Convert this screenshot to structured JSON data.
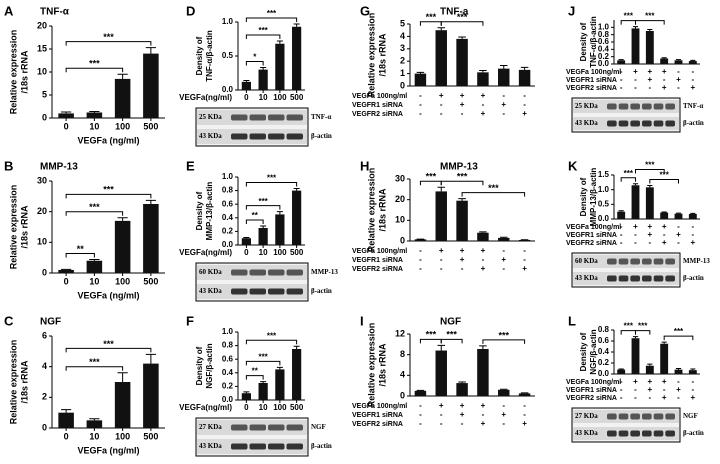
{
  "chart_data": [
    {
      "type": "bar",
      "panel": "A",
      "title": "TNF-α",
      "ylabel": [
        "Relative expression",
        "/18s rRNA"
      ],
      "xlabel": "VEGFa (ng/ml)",
      "categories": [
        "0",
        "10",
        "100",
        "500"
      ],
      "values": [
        1,
        1.2,
        8.5,
        14
      ],
      "errors": [
        0.3,
        0.2,
        1,
        1.3
      ],
      "color": "#111111",
      "ylim": [
        0,
        20
      ],
      "yticks": [
        0,
        5,
        10,
        15,
        20
      ],
      "annotations": [
        {
          "text": "***",
          "from": 0,
          "to": 2
        },
        {
          "text": "***",
          "from": 0,
          "to": 3
        }
      ]
    },
    {
      "type": "bar",
      "panel": "B",
      "title": "MMP-13",
      "ylabel": [
        "Relative expression",
        "/18s rRNA"
      ],
      "xlabel": "VEGFa (ng/ml)",
      "categories": [
        "0",
        "10",
        "100",
        "500"
      ],
      "values": [
        1,
        4,
        17,
        22.5
      ],
      "errors": [
        0.2,
        0.4,
        1,
        1.2
      ],
      "color": "#111111",
      "ylim": [
        0,
        30
      ],
      "yticks": [
        0,
        10,
        20,
        30
      ],
      "annotations": [
        {
          "text": "**",
          "from": 0,
          "to": 1
        },
        {
          "text": "***",
          "from": 0,
          "to": 2
        },
        {
          "text": "***",
          "from": 0,
          "to": 3
        }
      ]
    },
    {
      "type": "bar",
      "panel": "C",
      "title": "NGF",
      "ylabel": [
        "Relative expression",
        "/18s rRNA"
      ],
      "xlabel": "VEGFa (ng/ml)",
      "categories": [
        "0",
        "10",
        "100",
        "500"
      ],
      "values": [
        1,
        0.5,
        3,
        4.2
      ],
      "errors": [
        0.2,
        0.1,
        0.6,
        0.6
      ],
      "color": "#111111",
      "ylim": [
        0,
        6
      ],
      "yticks": [
        0,
        2,
        4,
        6
      ],
      "annotations": [
        {
          "text": "***",
          "from": 0,
          "to": 2
        },
        {
          "text": "***",
          "from": 0,
          "to": 3
        }
      ]
    },
    {
      "type": "bar",
      "panel": "D",
      "ylabel": [
        "Density of",
        "TNF-α/β-actin"
      ],
      "xlabel": "VEGFa(ng/ml)",
      "categories": [
        "0",
        "10",
        "100",
        "500"
      ],
      "values": [
        0.12,
        0.3,
        0.68,
        0.93
      ],
      "errors": [
        0.02,
        0.03,
        0.04,
        0.04
      ],
      "color": "#111111",
      "ylim": [
        0,
        1
      ],
      "yticks": [
        {
          "value": 0,
          "label": "0.0"
        },
        0.5,
        {
          "value": 1,
          "label": "1.0"
        }
      ],
      "annotations": [
        {
          "text": "*",
          "from": 0,
          "to": 1
        },
        {
          "text": "***",
          "from": 0,
          "to": 2
        },
        {
          "text": "***",
          "from": 0,
          "to": 3
        }
      ],
      "blot": {
        "top_kda": "25 KDa",
        "top_name": "TNF-α",
        "bottom_kda": "43 KDa",
        "bottom_name": "β-actin"
      }
    },
    {
      "type": "bar",
      "panel": "E",
      "ylabel": [
        "Density of",
        "MMP-13/β-actin"
      ],
      "xlabel": "VEGFa(ng/ml)",
      "categories": [
        "0",
        "10",
        "100",
        "500"
      ],
      "values": [
        0.1,
        0.25,
        0.45,
        0.8
      ],
      "errors": [
        0.01,
        0.03,
        0.04,
        0.03
      ],
      "color": "#111111",
      "ylim": [
        0,
        1
      ],
      "yticks": [
        {
          "value": 0,
          "label": "0.0"
        },
        0.2,
        0.4,
        0.6,
        0.8,
        {
          "value": 1,
          "label": "1.0"
        }
      ],
      "annotations": [
        {
          "text": "**",
          "from": 0,
          "to": 1
        },
        {
          "text": "***",
          "from": 0,
          "to": 2
        },
        {
          "text": "***",
          "from": 0,
          "to": 3
        }
      ],
      "blot": {
        "top_kda": "60 KDa",
        "top_name": "MMP-13",
        "bottom_kda": "43 KDa",
        "bottom_name": "β-actin"
      }
    },
    {
      "type": "bar",
      "panel": "F",
      "ylabel": [
        "Density of",
        "NGF/β-actin"
      ],
      "xlabel": "VEGFa(ng/ml)",
      "categories": [
        "0",
        "10",
        "100",
        "500"
      ],
      "values": [
        0.1,
        0.25,
        0.45,
        0.75
      ],
      "errors": [
        0.02,
        0.02,
        0.03,
        0.04
      ],
      "color": "#111111",
      "ylim": [
        0,
        1
      ],
      "yticks": [
        {
          "value": 0,
          "label": "0.0"
        },
        0.2,
        0.4,
        0.6,
        0.8,
        {
          "value": 1,
          "label": "1.0"
        }
      ],
      "annotations": [
        {
          "text": "**",
          "from": 0,
          "to": 1
        },
        {
          "text": "***",
          "from": 0,
          "to": 2
        },
        {
          "text": "***",
          "from": 0,
          "to": 3
        }
      ],
      "blot": {
        "top_kda": "27 KDa",
        "top_name": "NGF",
        "bottom_kda": "43 KDa",
        "bottom_name": "β-actin"
      }
    },
    {
      "type": "bar",
      "panel": "G",
      "title": "TNF-a",
      "ylabel": [
        "Relative expression",
        "/18s rRNA"
      ],
      "values": [
        1,
        4.5,
        3.8,
        1.1,
        1.4,
        1.3
      ],
      "errors": [
        0.1,
        0.2,
        0.15,
        0.15,
        0.25,
        0.2
      ],
      "color": "#111111",
      "ylim": [
        0,
        5
      ],
      "yticks": [
        0,
        1,
        2,
        3,
        4,
        5
      ],
      "annotations": [
        {
          "text": "***",
          "from": 0,
          "to": 1
        },
        {
          "text": "***",
          "from": 1,
          "to": 3
        }
      ],
      "conditions": [
        {
          "name": "VEGFa 100ng/ml",
          "signs": [
            "-",
            "+",
            "+",
            "+",
            "-",
            "-"
          ]
        },
        {
          "name": "VEGFR1 siRNA",
          "signs": [
            "-",
            "-",
            "+",
            "-",
            "+",
            "-"
          ]
        },
        {
          "name": "VEGFR2 siRNA",
          "signs": [
            "-",
            "-",
            "-",
            "+",
            "-",
            "+"
          ]
        }
      ]
    },
    {
      "type": "bar",
      "panel": "H",
      "title": "MMP-13",
      "ylabel": [
        "Relative expression",
        "/18s rRNA"
      ],
      "values": [
        0.8,
        24,
        19.5,
        4,
        1.5,
        0.5
      ],
      "errors": [
        0.1,
        2,
        1,
        0.4,
        0.3,
        0.1
      ],
      "color": "#111111",
      "ylim": [
        0,
        30
      ],
      "yticks": [
        0,
        10,
        20,
        30
      ],
      "annotations": [
        {
          "text": "***",
          "from": 2,
          "to": 5
        },
        {
          "text": "***",
          "from": 0,
          "to": 1
        },
        {
          "text": "***",
          "from": 1,
          "to": 3
        }
      ],
      "conditions": [
        {
          "name": "VEGFa 100ng/ml",
          "signs": [
            "-",
            "+",
            "+",
            "+",
            "-",
            "-"
          ]
        },
        {
          "name": "VEGFR1 siRNA",
          "signs": [
            "-",
            "-",
            "+",
            "-",
            "+",
            "-"
          ]
        },
        {
          "name": "VEGFR2 siRNA",
          "signs": [
            "-",
            "-",
            "-",
            "+",
            "-",
            "+"
          ]
        }
      ]
    },
    {
      "type": "bar",
      "panel": "I",
      "title": "NGF",
      "ylabel": [
        "Relative expression",
        "/18s rRNA"
      ],
      "values": [
        1,
        8.8,
        2.5,
        9.1,
        1.2,
        0.5
      ],
      "errors": [
        0.1,
        1,
        0.2,
        0.6,
        0.1,
        0.1
      ],
      "color": "#111111",
      "ylim": [
        0,
        12
      ],
      "yticks": [
        0,
        4,
        8,
        12
      ],
      "annotations": [
        {
          "text": "***",
          "from": 0,
          "to": 1
        },
        {
          "text": "***",
          "from": 1,
          "to": 2
        },
        {
          "text": "***",
          "from": 3,
          "to": 5
        }
      ],
      "conditions": [
        {
          "name": "VEGFa 100ng/ml",
          "signs": [
            "-",
            "+",
            "+",
            "+",
            "-",
            "-"
          ]
        },
        {
          "name": "VEGFR1 siRNA",
          "signs": [
            "-",
            "-",
            "+",
            "-",
            "+",
            "-"
          ]
        },
        {
          "name": "VEGFR2 siRNA",
          "signs": [
            "-",
            "-",
            "-",
            "+",
            "-",
            "+"
          ]
        }
      ]
    },
    {
      "type": "bar",
      "panel": "J",
      "ylabel": [
        "Density of",
        "TNF-α/β-actin"
      ],
      "values": [
        0.1,
        0.97,
        0.9,
        0.15,
        0.1,
        0.08
      ],
      "errors": [
        0.02,
        0.05,
        0.04,
        0.02,
        0.02,
        0.02
      ],
      "color": "#111111",
      "ylim": [
        0,
        1.2
      ],
      "yticks": [
        {
          "value": 0,
          "label": "0.0"
        },
        0.2,
        0.4,
        0.6,
        0.8,
        {
          "value": 1,
          "label": "1.0"
        }
      ],
      "annotations": [
        {
          "text": "***",
          "from": 0,
          "to": 1
        },
        {
          "text": "***",
          "from": 1,
          "to": 3
        }
      ],
      "conditions": [
        {
          "name": "VEGFa 100ng/ml",
          "signs": [
            "-",
            "+",
            "+",
            "+",
            "-",
            "-"
          ]
        },
        {
          "name": "VEGFR1 siRNA",
          "signs": [
            "-",
            "-",
            "+",
            "-",
            "+",
            "-"
          ]
        },
        {
          "name": "VEGFR2 siRNA",
          "signs": [
            "-",
            "-",
            "-",
            "+",
            "-",
            "+"
          ]
        }
      ],
      "blot": {
        "top_kda": "25 KDa",
        "top_name": "TNF-α",
        "bottom_kda": "43 KDa",
        "bottom_name": "β-actin"
      }
    },
    {
      "type": "bar",
      "panel": "K",
      "ylabel": [
        "Density of",
        "MMP-13/β-actin"
      ],
      "values": [
        0.25,
        1.15,
        1.08,
        0.22,
        0.18,
        0.17
      ],
      "errors": [
        0.03,
        0.05,
        0.06,
        0.02,
        0.02,
        0.02
      ],
      "color": "#111111",
      "ylim": [
        0,
        1.5
      ],
      "yticks": [
        {
          "value": 0,
          "label": "0.0"
        },
        0.5,
        {
          "value": 1,
          "label": "1.0"
        },
        1.5
      ],
      "annotations": [
        {
          "text": "***",
          "from": 0,
          "to": 1
        },
        {
          "text": "***",
          "from": 2,
          "to": 4
        },
        {
          "text": "***",
          "from": 1,
          "to": 3
        }
      ],
      "conditions": [
        {
          "name": "VEGFa 100ng/ml",
          "signs": [
            "-",
            "+",
            "+",
            "+",
            "-",
            "-"
          ]
        },
        {
          "name": "VEGFR1 siRNA",
          "signs": [
            "-",
            "-",
            "+",
            "-",
            "+",
            "-"
          ]
        },
        {
          "name": "VEGFR2 siRNA",
          "signs": [
            "-",
            "-",
            "-",
            "+",
            "-",
            "+"
          ]
        }
      ],
      "blot": {
        "top_kda": "60 KDa",
        "top_name": "MMP-13",
        "bottom_kda": "43 KDa",
        "bottom_name": "β-actin"
      }
    },
    {
      "type": "bar",
      "panel": "L",
      "ylabel": [
        "Density of",
        "NGF/β-actin"
      ],
      "values": [
        0.08,
        0.65,
        0.15,
        0.55,
        0.08,
        0.07
      ],
      "errors": [
        0.01,
        0.03,
        0.03,
        0.03,
        0.02,
        0.02
      ],
      "color": "#111111",
      "ylim": [
        0,
        0.8
      ],
      "yticks": [
        {
          "value": 0,
          "label": "0.0"
        },
        0.2,
        0.4,
        0.6,
        0.8
      ],
      "annotations": [
        {
          "text": "***",
          "from": 0,
          "to": 1
        },
        {
          "text": "***",
          "from": 1,
          "to": 2
        },
        {
          "text": "***",
          "from": 3,
          "to": 5
        }
      ],
      "conditions": [
        {
          "name": "VEGFa 100ng/ml",
          "signs": [
            "-",
            "+",
            "+",
            "+",
            "-",
            "-"
          ]
        },
        {
          "name": "VEGFR1 siRNA",
          "signs": [
            "-",
            "-",
            "+",
            "-",
            "+",
            "-"
          ]
        },
        {
          "name": "VEGFR2 siRNA",
          "signs": [
            "-",
            "-",
            "-",
            "+",
            "-",
            "+"
          ]
        }
      ],
      "blot": {
        "top_kda": "27 KDa",
        "top_name": "NGF",
        "bottom_kda": "43 KDa",
        "bottom_name": "β-actin"
      }
    }
  ]
}
